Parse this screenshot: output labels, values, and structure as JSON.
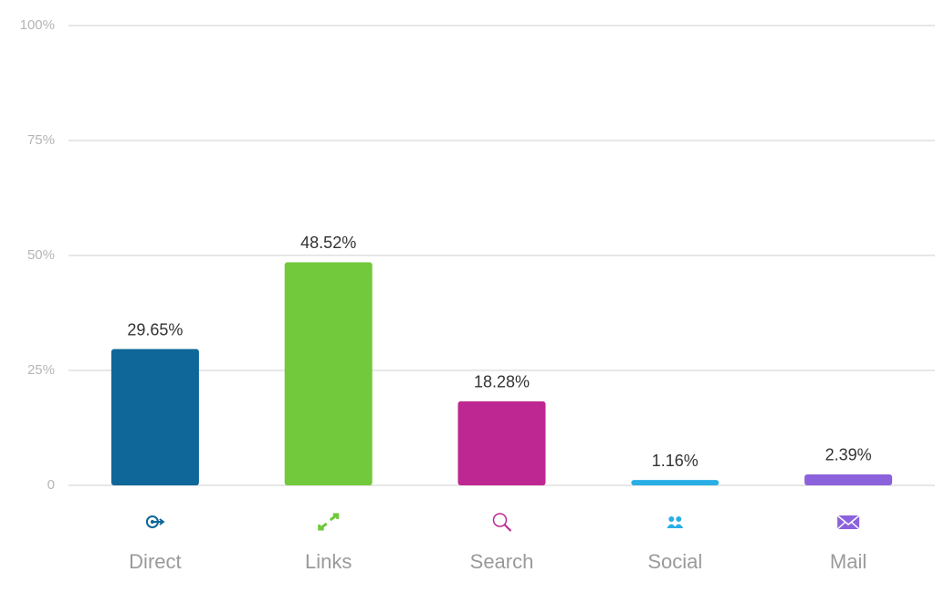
{
  "chart_data": {
    "type": "bar",
    "categories": [
      "Direct",
      "Links",
      "Search",
      "Social",
      "Mail"
    ],
    "values": [
      29.65,
      48.52,
      18.28,
      1.16,
      2.39
    ],
    "value_labels": [
      "29.65%",
      "48.52%",
      "18.28%",
      "1.16%",
      "2.39%"
    ],
    "colors": [
      "#0e6699",
      "#72c93b",
      "#be2792",
      "#29aee6",
      "#8c62dc"
    ],
    "ylim": [
      0,
      100
    ],
    "yticks": [
      0,
      {
        "value": 25,
        "label": "25%"
      },
      {
        "value": 50,
        "label": "50%"
      },
      {
        "value": 75,
        "label": "75%"
      },
      {
        "value": 100,
        "label": "100%"
      }
    ],
    "grid": true
  }
}
